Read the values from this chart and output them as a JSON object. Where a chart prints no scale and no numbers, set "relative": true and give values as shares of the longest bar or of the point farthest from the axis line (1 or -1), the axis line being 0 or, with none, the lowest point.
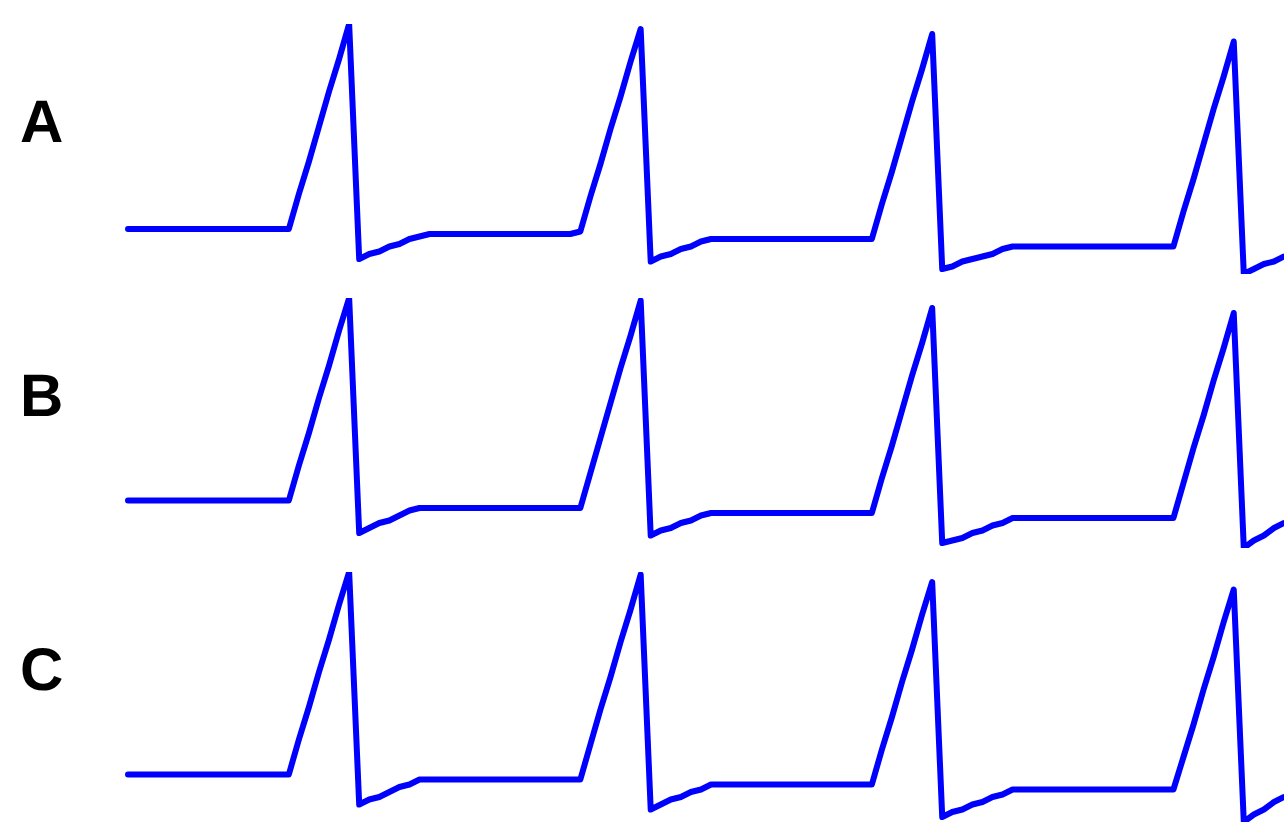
{
  "chart_data": [
    {
      "type": "line",
      "title": "A",
      "relative": true,
      "tick_labels": false,
      "marker": "none",
      "color": "#0000ff",
      "categories": [
        null,
        null,
        null,
        null,
        null,
        null,
        null,
        null,
        null,
        null,
        null,
        null,
        null,
        null,
        null,
        null,
        null,
        null,
        null,
        null,
        null,
        null,
        null,
        null,
        null,
        null,
        null,
        null,
        null,
        null,
        null,
        null,
        null,
        null,
        null,
        null,
        null,
        null,
        null,
        null,
        null,
        null,
        null,
        null,
        null,
        null,
        null,
        null,
        null,
        null,
        null,
        null,
        null,
        null,
        null,
        null,
        null,
        null,
        null,
        null,
        null,
        null,
        null,
        null,
        null,
        null,
        null,
        null,
        null,
        null,
        null,
        null,
        null,
        null,
        null,
        null,
        null,
        null,
        null,
        null,
        null,
        null,
        null,
        null,
        null,
        null,
        null,
        null,
        null,
        null,
        null,
        null,
        null,
        null,
        null,
        null,
        null,
        null,
        null,
        null,
        null,
        null,
        null,
        null,
        null,
        null,
        null,
        null,
        null,
        null,
        null,
        null,
        null,
        null,
        null,
        null
      ],
      "values": [
        0.18,
        0.18,
        0.18,
        0.18,
        0.18,
        0.18,
        0.18,
        0.18,
        0.18,
        0.18,
        0.18,
        0.18,
        0.18,
        0.18,
        0.18,
        0.18,
        0.18,
        0.32,
        0.45,
        0.59,
        0.73,
        0.86,
        1,
        0.06,
        0.08,
        0.09,
        0.11,
        0.12,
        0.14,
        0.15,
        0.16,
        0.16,
        0.16,
        0.16,
        0.16,
        0.16,
        0.16,
        0.16,
        0.16,
        0.16,
        0.16,
        0.16,
        0.16,
        0.16,
        0.16,
        0.17,
        0.31,
        0.44,
        0.58,
        0.71,
        0.85,
        0.98,
        0.05,
        0.07,
        0.08,
        0.1,
        0.11,
        0.13,
        0.14,
        0.14,
        0.14,
        0.14,
        0.14,
        0.14,
        0.14,
        0.14,
        0.14,
        0.14,
        0.14,
        0.14,
        0.14,
        0.14,
        0.14,
        0.14,
        0.14,
        0.28,
        0.41,
        0.55,
        0.69,
        0.82,
        0.96,
        0.02,
        0.03,
        0.05,
        0.06,
        0.07,
        0.08,
        0.1,
        0.11,
        0.11,
        0.11,
        0.11,
        0.11,
        0.11,
        0.11,
        0.11,
        0.11,
        0.11,
        0.11,
        0.11,
        0.11,
        0.11,
        0.11,
        0.11,
        0.11,
        0.25,
        0.38,
        0.52,
        0.66,
        0.79,
        0.93,
        0,
        0.02,
        0.04,
        0.05,
        0.07
      ]
    },
    {
      "type": "line",
      "title": "B",
      "relative": true,
      "tick_labels": false,
      "marker": "none",
      "color": "#0000ff",
      "categories": [
        null,
        null,
        null,
        null,
        null,
        null,
        null,
        null,
        null,
        null,
        null,
        null,
        null,
        null,
        null,
        null,
        null,
        null,
        null,
        null,
        null,
        null,
        null,
        null,
        null,
        null,
        null,
        null,
        null,
        null,
        null,
        null,
        null,
        null,
        null,
        null,
        null,
        null,
        null,
        null,
        null,
        null,
        null,
        null,
        null,
        null,
        null,
        null,
        null,
        null,
        null,
        null,
        null,
        null,
        null,
        null,
        null,
        null,
        null,
        null,
        null,
        null,
        null,
        null,
        null,
        null,
        null,
        null,
        null,
        null,
        null,
        null,
        null,
        null,
        null,
        null,
        null,
        null,
        null,
        null,
        null,
        null,
        null,
        null,
        null,
        null,
        null,
        null,
        null,
        null,
        null,
        null,
        null,
        null,
        null,
        null,
        null,
        null,
        null,
        null,
        null,
        null,
        null,
        null,
        null,
        null,
        null,
        null,
        null,
        null,
        null,
        null,
        null,
        null,
        null,
        null
      ],
      "values": [
        0.19,
        0.19,
        0.19,
        0.19,
        0.19,
        0.19,
        0.19,
        0.19,
        0.19,
        0.19,
        0.19,
        0.19,
        0.19,
        0.19,
        0.19,
        0.19,
        0.19,
        0.33,
        0.46,
        0.6,
        0.73,
        0.87,
        1,
        0.06,
        0.08,
        0.1,
        0.11,
        0.13,
        0.15,
        0.16,
        0.16,
        0.16,
        0.16,
        0.16,
        0.16,
        0.16,
        0.16,
        0.16,
        0.16,
        0.16,
        0.16,
        0.16,
        0.16,
        0.16,
        0.16,
        0.16,
        0.3,
        0.44,
        0.58,
        0.72,
        0.85,
        0.99,
        0.05,
        0.07,
        0.08,
        0.1,
        0.11,
        0.13,
        0.14,
        0.14,
        0.14,
        0.14,
        0.14,
        0.14,
        0.14,
        0.14,
        0.14,
        0.14,
        0.14,
        0.14,
        0.14,
        0.14,
        0.14,
        0.14,
        0.14,
        0.28,
        0.41,
        0.55,
        0.69,
        0.82,
        0.96,
        0.02,
        0.03,
        0.04,
        0.06,
        0.07,
        0.09,
        0.1,
        0.12,
        0.12,
        0.12,
        0.12,
        0.12,
        0.12,
        0.12,
        0.12,
        0.12,
        0.12,
        0.12,
        0.12,
        0.12,
        0.12,
        0.12,
        0.12,
        0.12,
        0.26,
        0.4,
        0.53,
        0.67,
        0.8,
        0.94,
        0,
        0.03,
        0.05,
        0.08,
        0.1
      ]
    },
    {
      "type": "line",
      "title": "C",
      "relative": true,
      "tick_labels": false,
      "marker": "none",
      "color": "#0000ff",
      "categories": [
        null,
        null,
        null,
        null,
        null,
        null,
        null,
        null,
        null,
        null,
        null,
        null,
        null,
        null,
        null,
        null,
        null,
        null,
        null,
        null,
        null,
        null,
        null,
        null,
        null,
        null,
        null,
        null,
        null,
        null,
        null,
        null,
        null,
        null,
        null,
        null,
        null,
        null,
        null,
        null,
        null,
        null,
        null,
        null,
        null,
        null,
        null,
        null,
        null,
        null,
        null,
        null,
        null,
        null,
        null,
        null,
        null,
        null,
        null,
        null,
        null,
        null,
        null,
        null,
        null,
        null,
        null,
        null,
        null,
        null,
        null,
        null,
        null,
        null,
        null,
        null,
        null,
        null,
        null,
        null,
        null,
        null,
        null,
        null,
        null,
        null,
        null,
        null,
        null,
        null,
        null,
        null,
        null,
        null,
        null,
        null,
        null,
        null,
        null,
        null,
        null,
        null,
        null,
        null,
        null,
        null,
        null,
        null,
        null,
        null,
        null,
        null,
        null,
        null,
        null,
        null
      ],
      "values": [
        0.19,
        0.19,
        0.19,
        0.19,
        0.19,
        0.19,
        0.19,
        0.19,
        0.19,
        0.19,
        0.19,
        0.19,
        0.19,
        0.19,
        0.19,
        0.19,
        0.19,
        0.33,
        0.46,
        0.6,
        0.73,
        0.87,
        1,
        0.07,
        0.09,
        0.1,
        0.12,
        0.14,
        0.15,
        0.17,
        0.17,
        0.17,
        0.17,
        0.17,
        0.17,
        0.17,
        0.17,
        0.17,
        0.17,
        0.17,
        0.17,
        0.17,
        0.17,
        0.17,
        0.17,
        0.17,
        0.31,
        0.45,
        0.58,
        0.72,
        0.85,
        0.99,
        0.05,
        0.07,
        0.09,
        0.1,
        0.12,
        0.13,
        0.15,
        0.15,
        0.15,
        0.15,
        0.15,
        0.15,
        0.15,
        0.15,
        0.15,
        0.15,
        0.15,
        0.15,
        0.15,
        0.15,
        0.15,
        0.15,
        0.15,
        0.29,
        0.42,
        0.56,
        0.69,
        0.83,
        0.96,
        0.02,
        0.04,
        0.05,
        0.07,
        0.08,
        0.1,
        0.11,
        0.13,
        0.13,
        0.13,
        0.13,
        0.13,
        0.13,
        0.13,
        0.13,
        0.13,
        0.13,
        0.13,
        0.13,
        0.13,
        0.13,
        0.13,
        0.13,
        0.13,
        0.26,
        0.39,
        0.53,
        0.66,
        0.8,
        0.93,
        0,
        0.03,
        0.05,
        0.08,
        0.1
      ]
    }
  ]
}
